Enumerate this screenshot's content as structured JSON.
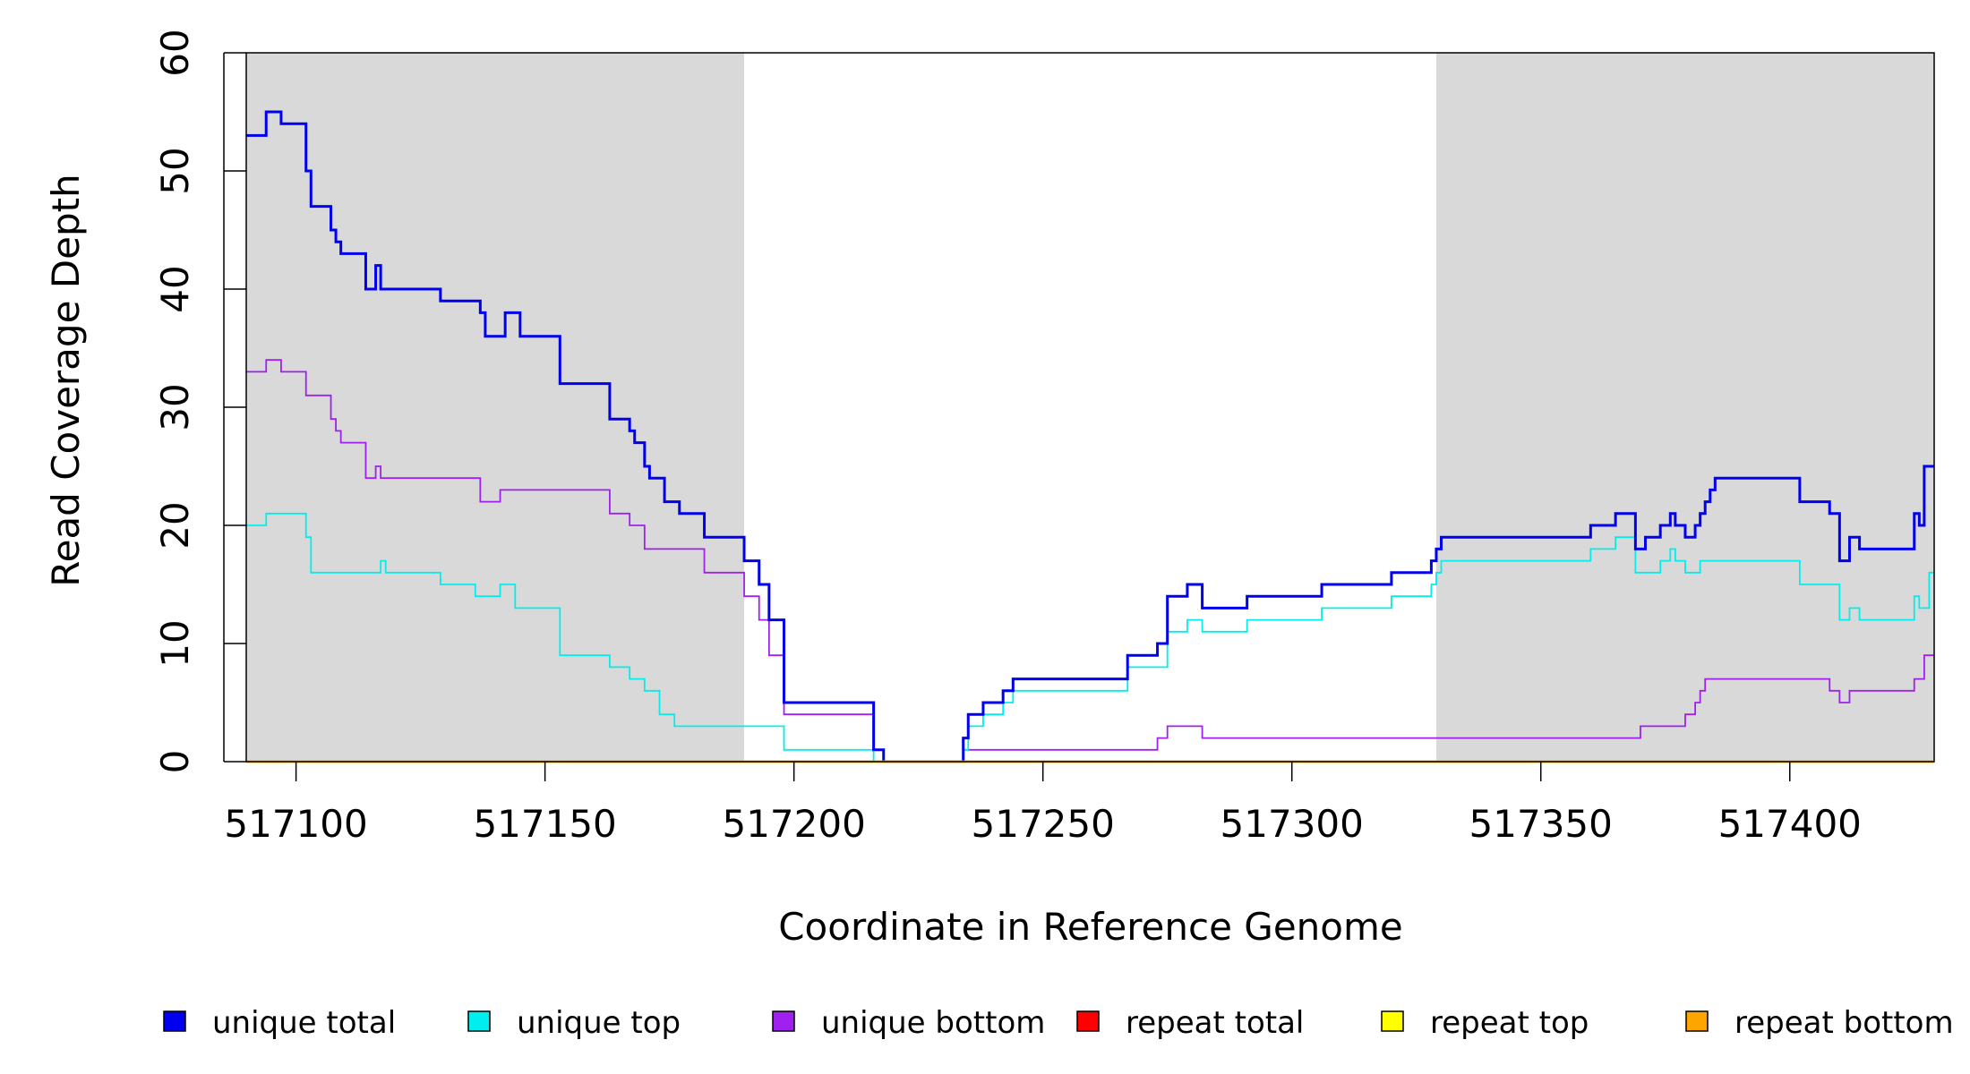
{
  "chart_data": {
    "type": "line",
    "title": "",
    "xlabel": "Coordinate in Reference Genome",
    "ylabel": "Read Coverage Depth",
    "xlim": [
      517090,
      517429
    ],
    "ylim": [
      0,
      60
    ],
    "x_ticks": [
      517100,
      517150,
      517200,
      517250,
      517300,
      517350,
      517400
    ],
    "x_tick_labels": [
      "517100",
      "517150",
      "517200",
      "517250",
      "517300",
      "517350",
      "517400"
    ],
    "y_ticks": [
      0,
      10,
      20,
      30,
      40,
      50,
      60
    ],
    "y_tick_labels": [
      "0",
      "10",
      "20",
      "30",
      "40",
      "50",
      "60"
    ],
    "shaded_regions": [
      [
        517090,
        517190
      ],
      [
        517329,
        517429
      ]
    ],
    "shade_color": "#d9d9d9",
    "legend_position": "bottom",
    "series": [
      {
        "name": "unique total",
        "color": "#0000ee",
        "step": [
          [
            517090,
            53
          ],
          [
            517094,
            55
          ],
          [
            517097,
            54
          ],
          [
            517102,
            50
          ],
          [
            517103,
            47
          ],
          [
            517107,
            45
          ],
          [
            517108,
            44
          ],
          [
            517109,
            43
          ],
          [
            517114,
            40
          ],
          [
            517116,
            42
          ],
          [
            517117,
            40
          ],
          [
            517129,
            39
          ],
          [
            517137,
            38
          ],
          [
            517138,
            36
          ],
          [
            517142,
            38
          ],
          [
            517145,
            36
          ],
          [
            517153,
            32
          ],
          [
            517163,
            29
          ],
          [
            517167,
            28
          ],
          [
            517168,
            27
          ],
          [
            517170,
            25
          ],
          [
            517171,
            24
          ],
          [
            517174,
            22
          ],
          [
            517177,
            21
          ],
          [
            517182,
            19
          ],
          [
            517190,
            17
          ],
          [
            517193,
            15
          ],
          [
            517195,
            12
          ],
          [
            517198,
            5
          ],
          [
            517216,
            1
          ],
          [
            517218,
            0
          ],
          [
            517234,
            2
          ],
          [
            517235,
            4
          ],
          [
            517238,
            5
          ],
          [
            517242,
            6
          ],
          [
            517244,
            7
          ],
          [
            517260,
            7
          ],
          [
            517267,
            9
          ],
          [
            517273,
            10
          ],
          [
            517275,
            14
          ],
          [
            517279,
            15
          ],
          [
            517282,
            13
          ],
          [
            517291,
            14
          ],
          [
            517306,
            15
          ],
          [
            517320,
            16
          ],
          [
            517328,
            17
          ],
          [
            517329,
            18
          ],
          [
            517330,
            19
          ],
          [
            517351,
            19
          ],
          [
            517360,
            20
          ],
          [
            517365,
            21
          ],
          [
            517369,
            18
          ],
          [
            517371,
            19
          ],
          [
            517374,
            20
          ],
          [
            517376,
            21
          ],
          [
            517377,
            20
          ],
          [
            517379,
            19
          ],
          [
            517381,
            20
          ],
          [
            517382,
            21
          ],
          [
            517383,
            22
          ],
          [
            517384,
            23
          ],
          [
            517385,
            24
          ],
          [
            517402,
            22
          ],
          [
            517408,
            21
          ],
          [
            517410,
            17
          ],
          [
            517412,
            19
          ],
          [
            517414,
            18
          ],
          [
            517425,
            21
          ],
          [
            517426,
            20
          ],
          [
            517427,
            25
          ],
          [
            517429,
            25
          ]
        ]
      },
      {
        "name": "unique top",
        "color": "#00eeee",
        "step": [
          [
            517090,
            20
          ],
          [
            517094,
            21
          ],
          [
            517102,
            19
          ],
          [
            517103,
            16
          ],
          [
            517117,
            17
          ],
          [
            517118,
            16
          ],
          [
            517129,
            15
          ],
          [
            517136,
            14
          ],
          [
            517141,
            15
          ],
          [
            517144,
            13
          ],
          [
            517153,
            9
          ],
          [
            517163,
            8
          ],
          [
            517167,
            7
          ],
          [
            517170,
            6
          ],
          [
            517173,
            4
          ],
          [
            517176,
            3
          ],
          [
            517189,
            3
          ],
          [
            517198,
            1
          ],
          [
            517216,
            0
          ],
          [
            517218,
            0
          ],
          [
            517234,
            1
          ],
          [
            517235,
            3
          ],
          [
            517238,
            4
          ],
          [
            517242,
            5
          ],
          [
            517244,
            6
          ],
          [
            517257,
            6
          ],
          [
            517267,
            8
          ],
          [
            517275,
            11
          ],
          [
            517279,
            12
          ],
          [
            517282,
            11
          ],
          [
            517291,
            12
          ],
          [
            517306,
            13
          ],
          [
            517320,
            14
          ],
          [
            517328,
            15
          ],
          [
            517329,
            16
          ],
          [
            517330,
            17
          ],
          [
            517351,
            17
          ],
          [
            517360,
            18
          ],
          [
            517365,
            19
          ],
          [
            517369,
            16
          ],
          [
            517374,
            17
          ],
          [
            517376,
            18
          ],
          [
            517377,
            17
          ],
          [
            517379,
            16
          ],
          [
            517382,
            17
          ],
          [
            517402,
            15
          ],
          [
            517410,
            12
          ],
          [
            517412,
            13
          ],
          [
            517414,
            12
          ],
          [
            517425,
            14
          ],
          [
            517426,
            13
          ],
          [
            517428,
            16
          ],
          [
            517429,
            16
          ]
        ]
      },
      {
        "name": "unique bottom",
        "color": "#a020f0",
        "step": [
          [
            517090,
            33
          ],
          [
            517094,
            34
          ],
          [
            517097,
            33
          ],
          [
            517102,
            31
          ],
          [
            517107,
            29
          ],
          [
            517108,
            28
          ],
          [
            517109,
            27
          ],
          [
            517114,
            24
          ],
          [
            517116,
            25
          ],
          [
            517117,
            24
          ],
          [
            517137,
            22
          ],
          [
            517141,
            23
          ],
          [
            517163,
            21
          ],
          [
            517167,
            20
          ],
          [
            517170,
            18
          ],
          [
            517182,
            16
          ],
          [
            517190,
            14
          ],
          [
            517193,
            12
          ],
          [
            517195,
            9
          ],
          [
            517198,
            4
          ],
          [
            517216,
            1
          ],
          [
            517218,
            0
          ],
          [
            517234,
            1
          ],
          [
            517273,
            2
          ],
          [
            517275,
            3
          ],
          [
            517282,
            2
          ],
          [
            517370,
            3
          ],
          [
            517379,
            4
          ],
          [
            517381,
            5
          ],
          [
            517382,
            6
          ],
          [
            517383,
            7
          ],
          [
            517408,
            6
          ],
          [
            517410,
            5
          ],
          [
            517412,
            6
          ],
          [
            517425,
            7
          ],
          [
            517427,
            9
          ],
          [
            517429,
            9
          ]
        ]
      },
      {
        "name": "repeat total",
        "color": "#ff0000",
        "step": [
          [
            517090,
            0
          ],
          [
            517429,
            0
          ]
        ]
      },
      {
        "name": "repeat top",
        "color": "#ffff00",
        "step": [
          [
            517090,
            0
          ],
          [
            517429,
            0
          ]
        ]
      },
      {
        "name": "repeat bottom",
        "color": "#ffa500",
        "step": [
          [
            517090,
            0
          ],
          [
            517429,
            0
          ]
        ]
      }
    ]
  }
}
